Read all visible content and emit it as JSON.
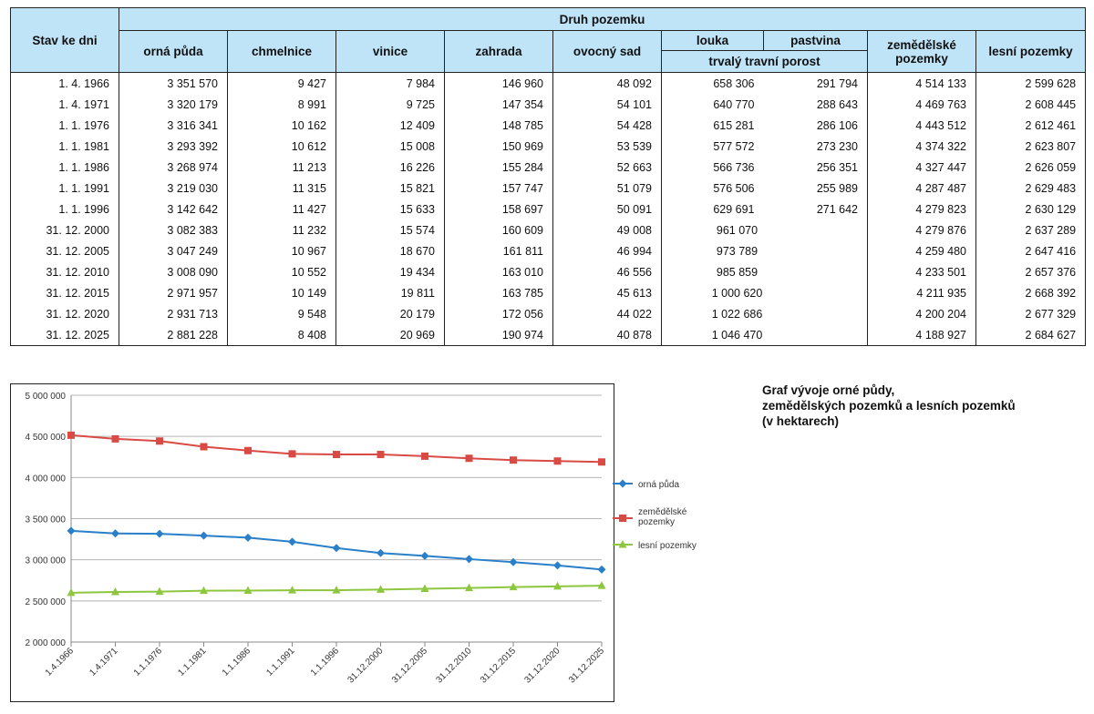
{
  "table": {
    "headers": {
      "date": "Stav ke dni",
      "group": "Druh pozemku",
      "orna": "orná půda",
      "chmelnice": "chmelnice",
      "vinice": "vinice",
      "zahrada": "zahrada",
      "ovocny": "ovocný sad",
      "louka": "louka",
      "pastvina": "pastvina",
      "ttp": "trvalý travní porost",
      "zemedelske": "zemědělské pozemky",
      "lesni": "lesní pozemky"
    },
    "rows": [
      {
        "date": "1. 4. 1966",
        "orna": "3 351 570",
        "chmel": "9 427",
        "vinice": "7 984",
        "zahrada": "146 960",
        "ovocny": "48 092",
        "louka": "658 306",
        "pastvina": "291 794",
        "ttp": "",
        "zem": "4 514 133",
        "les": "2 599 628"
      },
      {
        "date": "1. 4. 1971",
        "orna": "3 320 179",
        "chmel": "8 991",
        "vinice": "9 725",
        "zahrada": "147 354",
        "ovocny": "54 101",
        "louka": "640 770",
        "pastvina": "288 643",
        "ttp": "",
        "zem": "4 469 763",
        "les": "2 608 445"
      },
      {
        "date": "1. 1. 1976",
        "orna": "3 316 341",
        "chmel": "10 162",
        "vinice": "12 409",
        "zahrada": "148 785",
        "ovocny": "54 428",
        "louka": "615 281",
        "pastvina": "286 106",
        "ttp": "",
        "zem": "4 443 512",
        "les": "2 612 461"
      },
      {
        "date": "1. 1. 1981",
        "orna": "3 293 392",
        "chmel": "10 612",
        "vinice": "15 008",
        "zahrada": "150 969",
        "ovocny": "53 539",
        "louka": "577 572",
        "pastvina": "273 230",
        "ttp": "",
        "zem": "4 374 322",
        "les": "2 623 807"
      },
      {
        "date": "1. 1. 1986",
        "orna": "3 268 974",
        "chmel": "11 213",
        "vinice": "16 226",
        "zahrada": "155 284",
        "ovocny": "52 663",
        "louka": "566 736",
        "pastvina": "256 351",
        "ttp": "",
        "zem": "4 327 447",
        "les": "2 626 059"
      },
      {
        "date": "1. 1. 1991",
        "orna": "3 219 030",
        "chmel": "11 315",
        "vinice": "15 821",
        "zahrada": "157 747",
        "ovocny": "51 079",
        "louka": "576 506",
        "pastvina": "255 989",
        "ttp": "",
        "zem": "4 287 487",
        "les": "2 629 483"
      },
      {
        "date": "1. 1. 1996",
        "orna": "3 142 642",
        "chmel": "11 427",
        "vinice": "15 633",
        "zahrada": "158 697",
        "ovocny": "50 091",
        "louka": "629 691",
        "pastvina": "271 642",
        "ttp": "",
        "zem": "4 279 823",
        "les": "2 630 129"
      },
      {
        "date": "31. 12. 2000",
        "orna": "3 082 383",
        "chmel": "11 232",
        "vinice": "15 574",
        "zahrada": "160 609",
        "ovocny": "49 008",
        "louka": "",
        "pastvina": "",
        "ttp": "961 070",
        "zem": "4 279 876",
        "les": "2 637 289"
      },
      {
        "date": "31. 12. 2005",
        "orna": "3 047 249",
        "chmel": "10 967",
        "vinice": "18 670",
        "zahrada": "161 811",
        "ovocny": "46 994",
        "louka": "",
        "pastvina": "",
        "ttp": "973 789",
        "zem": "4 259 480",
        "les": "2 647 416"
      },
      {
        "date": "31. 12. 2010",
        "orna": "3 008 090",
        "chmel": "10 552",
        "vinice": "19 434",
        "zahrada": "163 010",
        "ovocny": "46 556",
        "louka": "",
        "pastvina": "",
        "ttp": "985 859",
        "zem": "4 233 501",
        "les": "2 657 376"
      },
      {
        "date": "31. 12. 2015",
        "orna": "2 971 957",
        "chmel": "10 149",
        "vinice": "19 811",
        "zahrada": "163 785",
        "ovocny": "45 613",
        "louka": "",
        "pastvina": "",
        "ttp": "1 000 620",
        "zem": "4 211 935",
        "les": "2 668 392"
      },
      {
        "date": "31. 12. 2020",
        "orna": "2 931 713",
        "chmel": "9 548",
        "vinice": "20 179",
        "zahrada": "172 056",
        "ovocny": "44 022",
        "louka": "",
        "pastvina": "",
        "ttp": "1 022 686",
        "zem": "4 200 204",
        "les": "2 677 329"
      },
      {
        "date": "31. 12. 2025",
        "orna": "2 881 228",
        "chmel": "8 408",
        "vinice": "20 969",
        "zahrada": "190 974",
        "ovocny": "40 878",
        "louka": "",
        "pastvina": "",
        "ttp": "1 046 470",
        "zem": "4 188 927",
        "les": "2 684 627"
      }
    ]
  },
  "chart_title": {
    "line1": "Graf vývoje orné půdy,",
    "line2": "zemědělských pozemků a lesních pozemků",
    "line3": "(v hektarech)"
  },
  "chart_data": {
    "type": "line",
    "title": "Graf vývoje orné půdy, zemědělských pozemků a lesních pozemků (v hektarech)",
    "categories": [
      "1.4.1966",
      "1.4.1971",
      "1.1.1976",
      "1.1.1981",
      "1.1.1986",
      "1.1.1991",
      "1.1.1996",
      "31.12.2000",
      "31.12.2005",
      "31.12.2010",
      "31.12.2015",
      "31.12.2020",
      "31.12.2025"
    ],
    "ylim": [
      2000000,
      5000000
    ],
    "yticks": [
      2000000,
      2500000,
      3000000,
      3500000,
      4000000,
      4500000,
      5000000
    ],
    "ytick_labels": [
      "2 000 000",
      "2 500 000",
      "3 000 000",
      "3 500 000",
      "4 000 000",
      "4 500 000",
      "5 000 000"
    ],
    "grid": true,
    "legend": "right",
    "series": [
      {
        "name": "orná půda",
        "color": "#2a7fc9",
        "marker": "diamond",
        "values": [
          3351570,
          3320179,
          3316341,
          3293392,
          3268974,
          3219030,
          3142642,
          3082383,
          3047249,
          3008090,
          2971957,
          2931713,
          2881228
        ]
      },
      {
        "name": "zemědělské pozemky",
        "legend_lines": [
          "zemědělské",
          "pozemky"
        ],
        "color": "#d94a45",
        "marker": "square",
        "values": [
          4514133,
          4469763,
          4443512,
          4374322,
          4327447,
          4287487,
          4279823,
          4279876,
          4259480,
          4233501,
          4211935,
          4200204,
          4188927
        ]
      },
      {
        "name": "lesní pozemky",
        "color": "#8dc63f",
        "marker": "triangle",
        "values": [
          2599628,
          2608445,
          2612461,
          2623807,
          2626059,
          2629483,
          2630129,
          2637289,
          2647416,
          2657376,
          2668392,
          2677329,
          2684627
        ]
      }
    ]
  }
}
